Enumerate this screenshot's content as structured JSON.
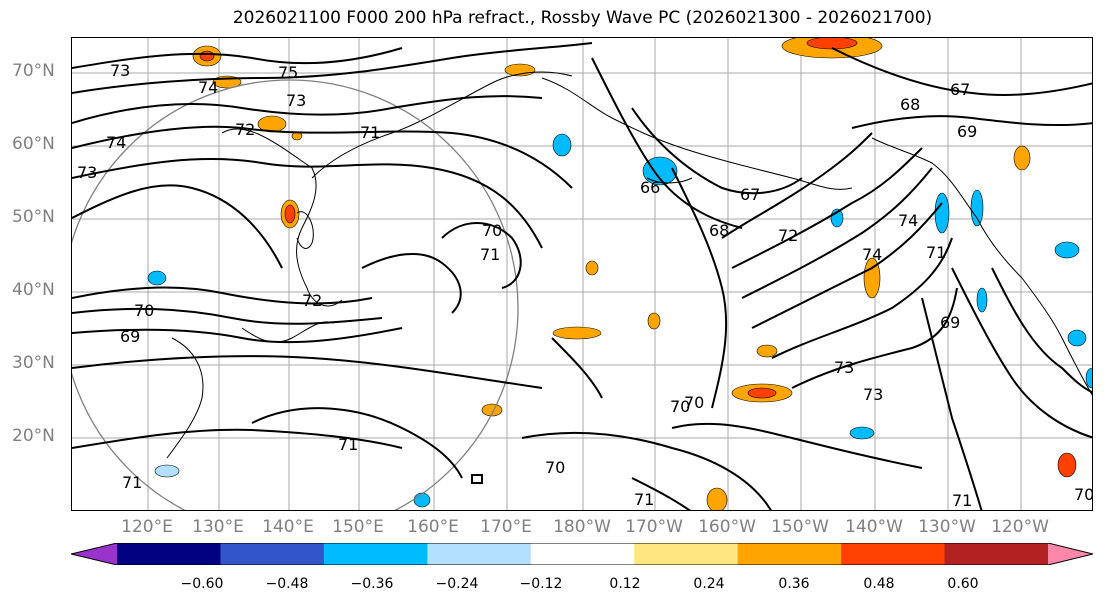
{
  "title": "2026021100 F000 200 hPa refract., Rossby Wave PC (2026021300 - 2026021700)",
  "lat_labels": [
    "70°N",
    "60°N",
    "50°N",
    "40°N",
    "30°N",
    "20°N"
  ],
  "lon_labels": [
    "120°E",
    "130°E",
    "140°E",
    "150°E",
    "160°E",
    "170°E",
    "180°W",
    "170°W",
    "160°W",
    "150°W",
    "140°W",
    "130°W",
    "120°W"
  ],
  "contour_labels": [
    "75",
    "74",
    "73",
    "73",
    "72",
    "71",
    "74",
    "73",
    "70",
    "72",
    "70",
    "69",
    "66",
    "67",
    "68",
    "72",
    "74",
    "74",
    "71",
    "69",
    "73",
    "73",
    "70",
    "70",
    "71",
    "70",
    "71",
    "71",
    "67",
    "68",
    "69",
    "71",
    "70",
    "71"
  ],
  "colorbar": {
    "colors": [
      "#9933cc",
      "#000080",
      "#3355cc",
      "#00bbff",
      "#b3e0ff",
      "#ffffff",
      "#ffe680",
      "#ffa500",
      "#ff4000",
      "#b22222",
      "#ff88aa"
    ],
    "tick_labels": [
      "−0.60",
      "−0.48",
      "−0.36",
      "−0.24",
      "−0.12",
      "0.12",
      "0.24",
      "0.36",
      "0.48",
      "0.60"
    ]
  },
  "colors": {
    "contour": "#000000",
    "gridline": "#aaaaaa",
    "coast": "#000000",
    "circle": "#808080"
  }
}
